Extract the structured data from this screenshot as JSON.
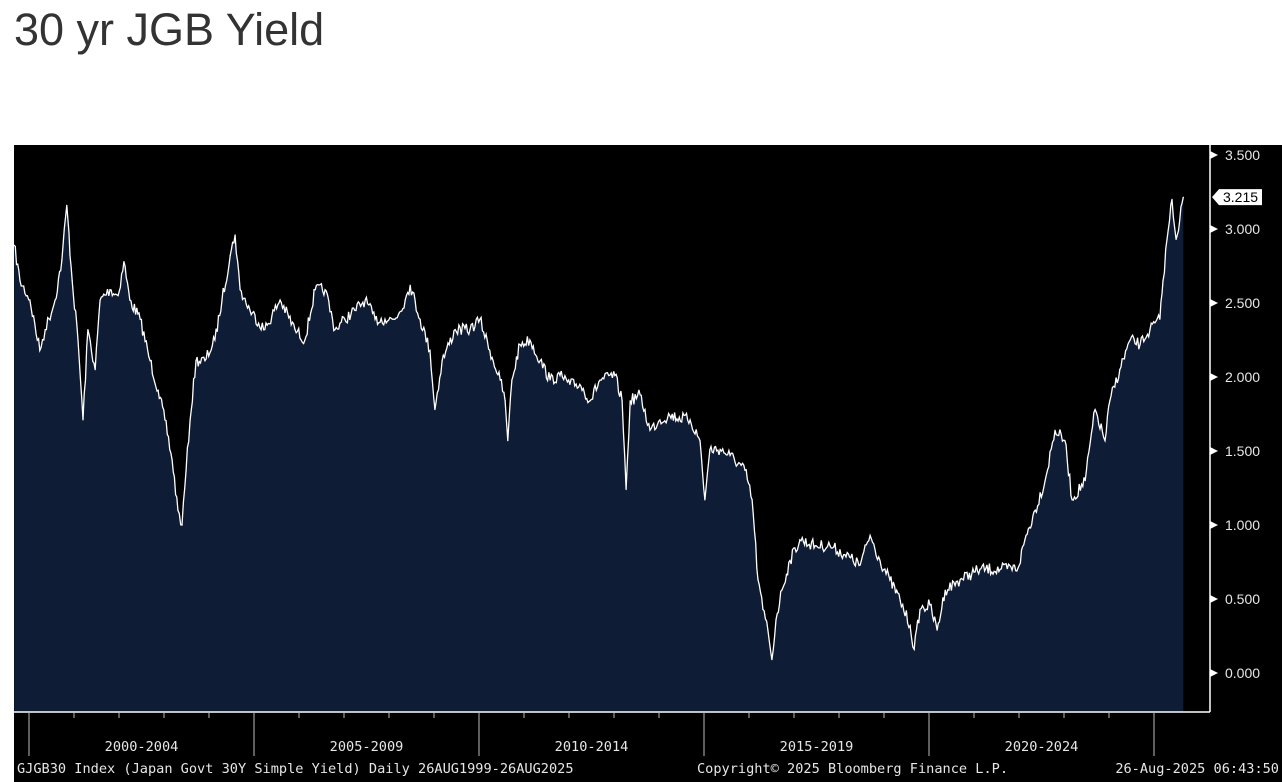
{
  "title": "30 yr JGB Yield",
  "chart_data": {
    "type": "area",
    "title": "30 yr JGB Yield",
    "xlabel": "",
    "ylabel": "",
    "ylim": [
      -0.2,
      3.6
    ],
    "xlim": [
      1999.65,
      2025.65
    ],
    "yticks": [
      0.0,
      0.5,
      1.0,
      1.5,
      2.0,
      2.5,
      3.0,
      3.5
    ],
    "ytick_labels": [
      "0.000",
      "0.500",
      "1.000",
      "1.500",
      "2.000",
      "2.500",
      "3.000",
      "3.500"
    ],
    "x_major_ticks": [
      2000,
      2005,
      2010,
      2015,
      2020,
      2025
    ],
    "x_period_labels": [
      {
        "label": "2000-2004",
        "center": 2002.5
      },
      {
        "label": "2005-2009",
        "center": 2007.5
      },
      {
        "label": "2010-2014",
        "center": 2012.5
      },
      {
        "label": "2015-2019",
        "center": 2017.5
      },
      {
        "label": "2020-2024",
        "center": 2022.5
      }
    ],
    "last_value": 3.215,
    "last_value_label": "3.215",
    "series": [
      {
        "name": "GJGB30 Index",
        "x": [
          1999.67,
          1999.8,
          2000.02,
          2000.24,
          2000.36,
          2000.58,
          2000.73,
          2000.84,
          2000.96,
          2001.09,
          2001.2,
          2001.31,
          2001.47,
          2001.58,
          2001.8,
          2001.98,
          2002.11,
          2002.24,
          2002.47,
          2002.69,
          2002.87,
          2003.02,
          2003.18,
          2003.31,
          2003.4,
          2003.49,
          2003.58,
          2003.71,
          2003.91,
          2004.13,
          2004.29,
          2004.47,
          2004.58,
          2004.69,
          2004.91,
          2005.24,
          2005.58,
          2005.91,
          2006.13,
          2006.36,
          2006.58,
          2006.8,
          2007.02,
          2007.24,
          2007.47,
          2007.69,
          2007.91,
          2008.13,
          2008.36,
          2008.47,
          2008.69,
          2008.91,
          2009.02,
          2009.18,
          2009.47,
          2009.8,
          2010.02,
          2010.24,
          2010.47,
          2010.58,
          2010.64,
          2010.73,
          2010.91,
          2011.13,
          2011.36,
          2011.58,
          2011.8,
          2012.02,
          2012.24,
          2012.47,
          2012.69,
          2013.02,
          2013.18,
          2013.27,
          2013.36,
          2013.58,
          2013.8,
          2014.02,
          2014.24,
          2014.69,
          2014.91,
          2015.02,
          2015.13,
          2015.36,
          2015.58,
          2015.91,
          2016.07,
          2016.2,
          2016.31,
          2016.42,
          2016.51,
          2016.6,
          2016.73,
          2016.91,
          2017.13,
          2017.47,
          2017.8,
          2018.13,
          2018.47,
          2018.69,
          2018.91,
          2019.13,
          2019.36,
          2019.58,
          2019.67,
          2019.8,
          2020.02,
          2020.18,
          2020.36,
          2020.69,
          2021.13,
          2021.58,
          2021.98,
          2022.13,
          2022.36,
          2022.58,
          2022.8,
          2023.02,
          2023.18,
          2023.47,
          2023.69,
          2023.91,
          2024.02,
          2024.24,
          2024.47,
          2024.69,
          2024.91,
          2025.13,
          2025.2,
          2025.29,
          2025.4,
          2025.49,
          2025.65
        ],
        "values": [
          2.89,
          2.65,
          2.52,
          2.18,
          2.32,
          2.52,
          2.79,
          3.16,
          2.65,
          2.25,
          1.71,
          2.32,
          2.05,
          2.52,
          2.59,
          2.55,
          2.78,
          2.52,
          2.39,
          2.11,
          1.91,
          1.71,
          1.44,
          1.1,
          1.0,
          1.37,
          1.71,
          2.11,
          2.11,
          2.25,
          2.52,
          2.82,
          2.96,
          2.59,
          2.45,
          2.32,
          2.52,
          2.32,
          2.25,
          2.59,
          2.59,
          2.32,
          2.39,
          2.45,
          2.52,
          2.39,
          2.39,
          2.39,
          2.52,
          2.62,
          2.39,
          2.18,
          1.78,
          2.11,
          2.32,
          2.32,
          2.39,
          2.18,
          1.98,
          1.84,
          1.57,
          1.98,
          2.22,
          2.25,
          2.11,
          1.98,
          2.01,
          1.95,
          1.95,
          1.84,
          1.98,
          2.01,
          1.84,
          1.24,
          1.84,
          1.88,
          1.64,
          1.71,
          1.74,
          1.71,
          1.57,
          1.17,
          1.51,
          1.51,
          1.47,
          1.37,
          1.17,
          0.63,
          0.43,
          0.29,
          0.09,
          0.36,
          0.56,
          0.76,
          0.9,
          0.86,
          0.86,
          0.8,
          0.73,
          0.93,
          0.76,
          0.63,
          0.49,
          0.32,
          0.16,
          0.43,
          0.46,
          0.29,
          0.56,
          0.63,
          0.7,
          0.7,
          0.71,
          0.9,
          1.1,
          1.3,
          1.64,
          1.57,
          1.17,
          1.3,
          1.78,
          1.57,
          1.84,
          2.05,
          2.25,
          2.22,
          2.32,
          2.39,
          2.65,
          2.93,
          3.2,
          2.93,
          3.215
        ]
      }
    ]
  },
  "footer": {
    "left": "GJGB30 Index (Japan Govt 30Y Simple Yield)  Daily 26AUG1999-26AUG2025",
    "center": "Copyright© 2025 Bloomberg Finance L.P.",
    "right": "26-Aug-2025 06:43:50"
  },
  "colors": {
    "background": "#000000",
    "fill": "#0e1c36",
    "line": "#ffffff",
    "axis_text": "#e6e6e6"
  }
}
